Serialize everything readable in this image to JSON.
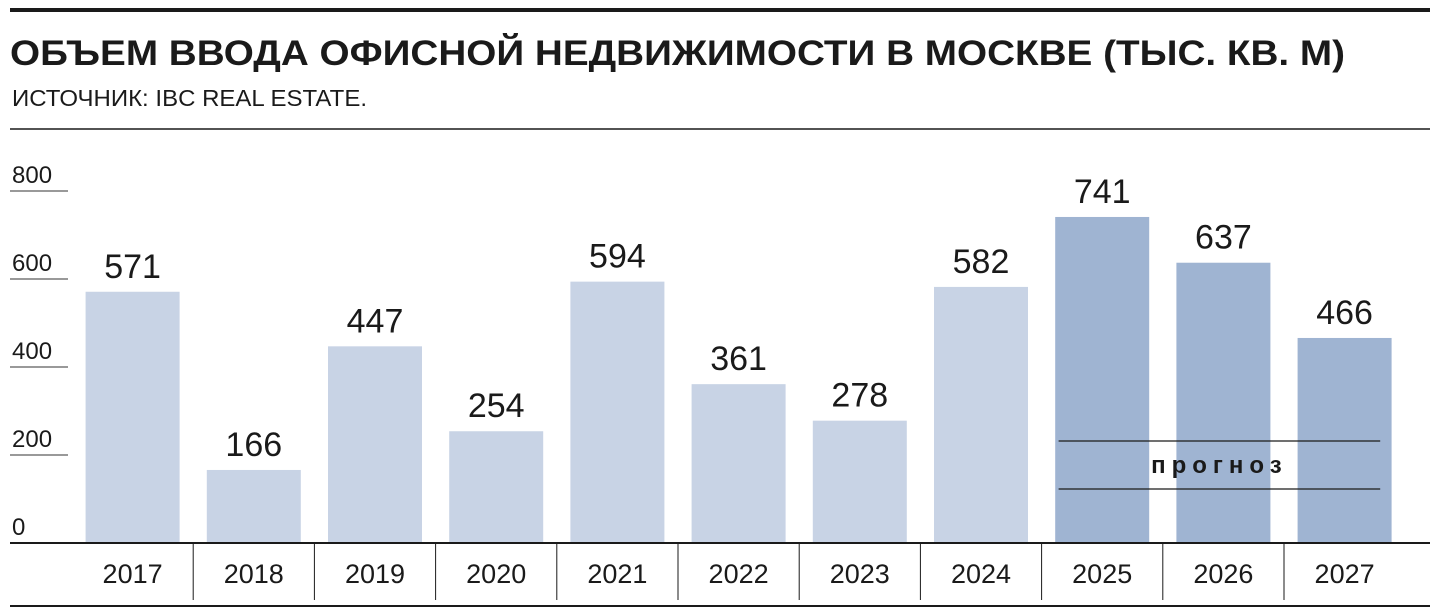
{
  "chart_data": {
    "type": "bar",
    "title": "ОБЪЕМ ВВОДА ОФИСНОЙ НЕДВИЖИМОСТИ В МОСКВЕ (ТЫС. КВ. М)",
    "subtitle": "ИСТОЧНИК: IBC REAL ESTATE.",
    "categories": [
      "2017",
      "2018",
      "2019",
      "2020",
      "2021",
      "2022",
      "2023",
      "2024",
      "2025",
      "2026",
      "2027"
    ],
    "values": [
      571,
      166,
      447,
      254,
      594,
      361,
      278,
      582,
      741,
      637,
      466
    ],
    "colors": [
      "#c8d3e5",
      "#c8d3e5",
      "#c8d3e5",
      "#c8d3e5",
      "#c8d3e5",
      "#c8d3e5",
      "#c8d3e5",
      "#c8d3e5",
      "#9fb4d2",
      "#9fb4d2",
      "#9fb4d2"
    ],
    "annotation": "прогноз",
    "ylim": [
      0,
      800
    ],
    "yticks": [
      0,
      200,
      400,
      600,
      800
    ]
  }
}
